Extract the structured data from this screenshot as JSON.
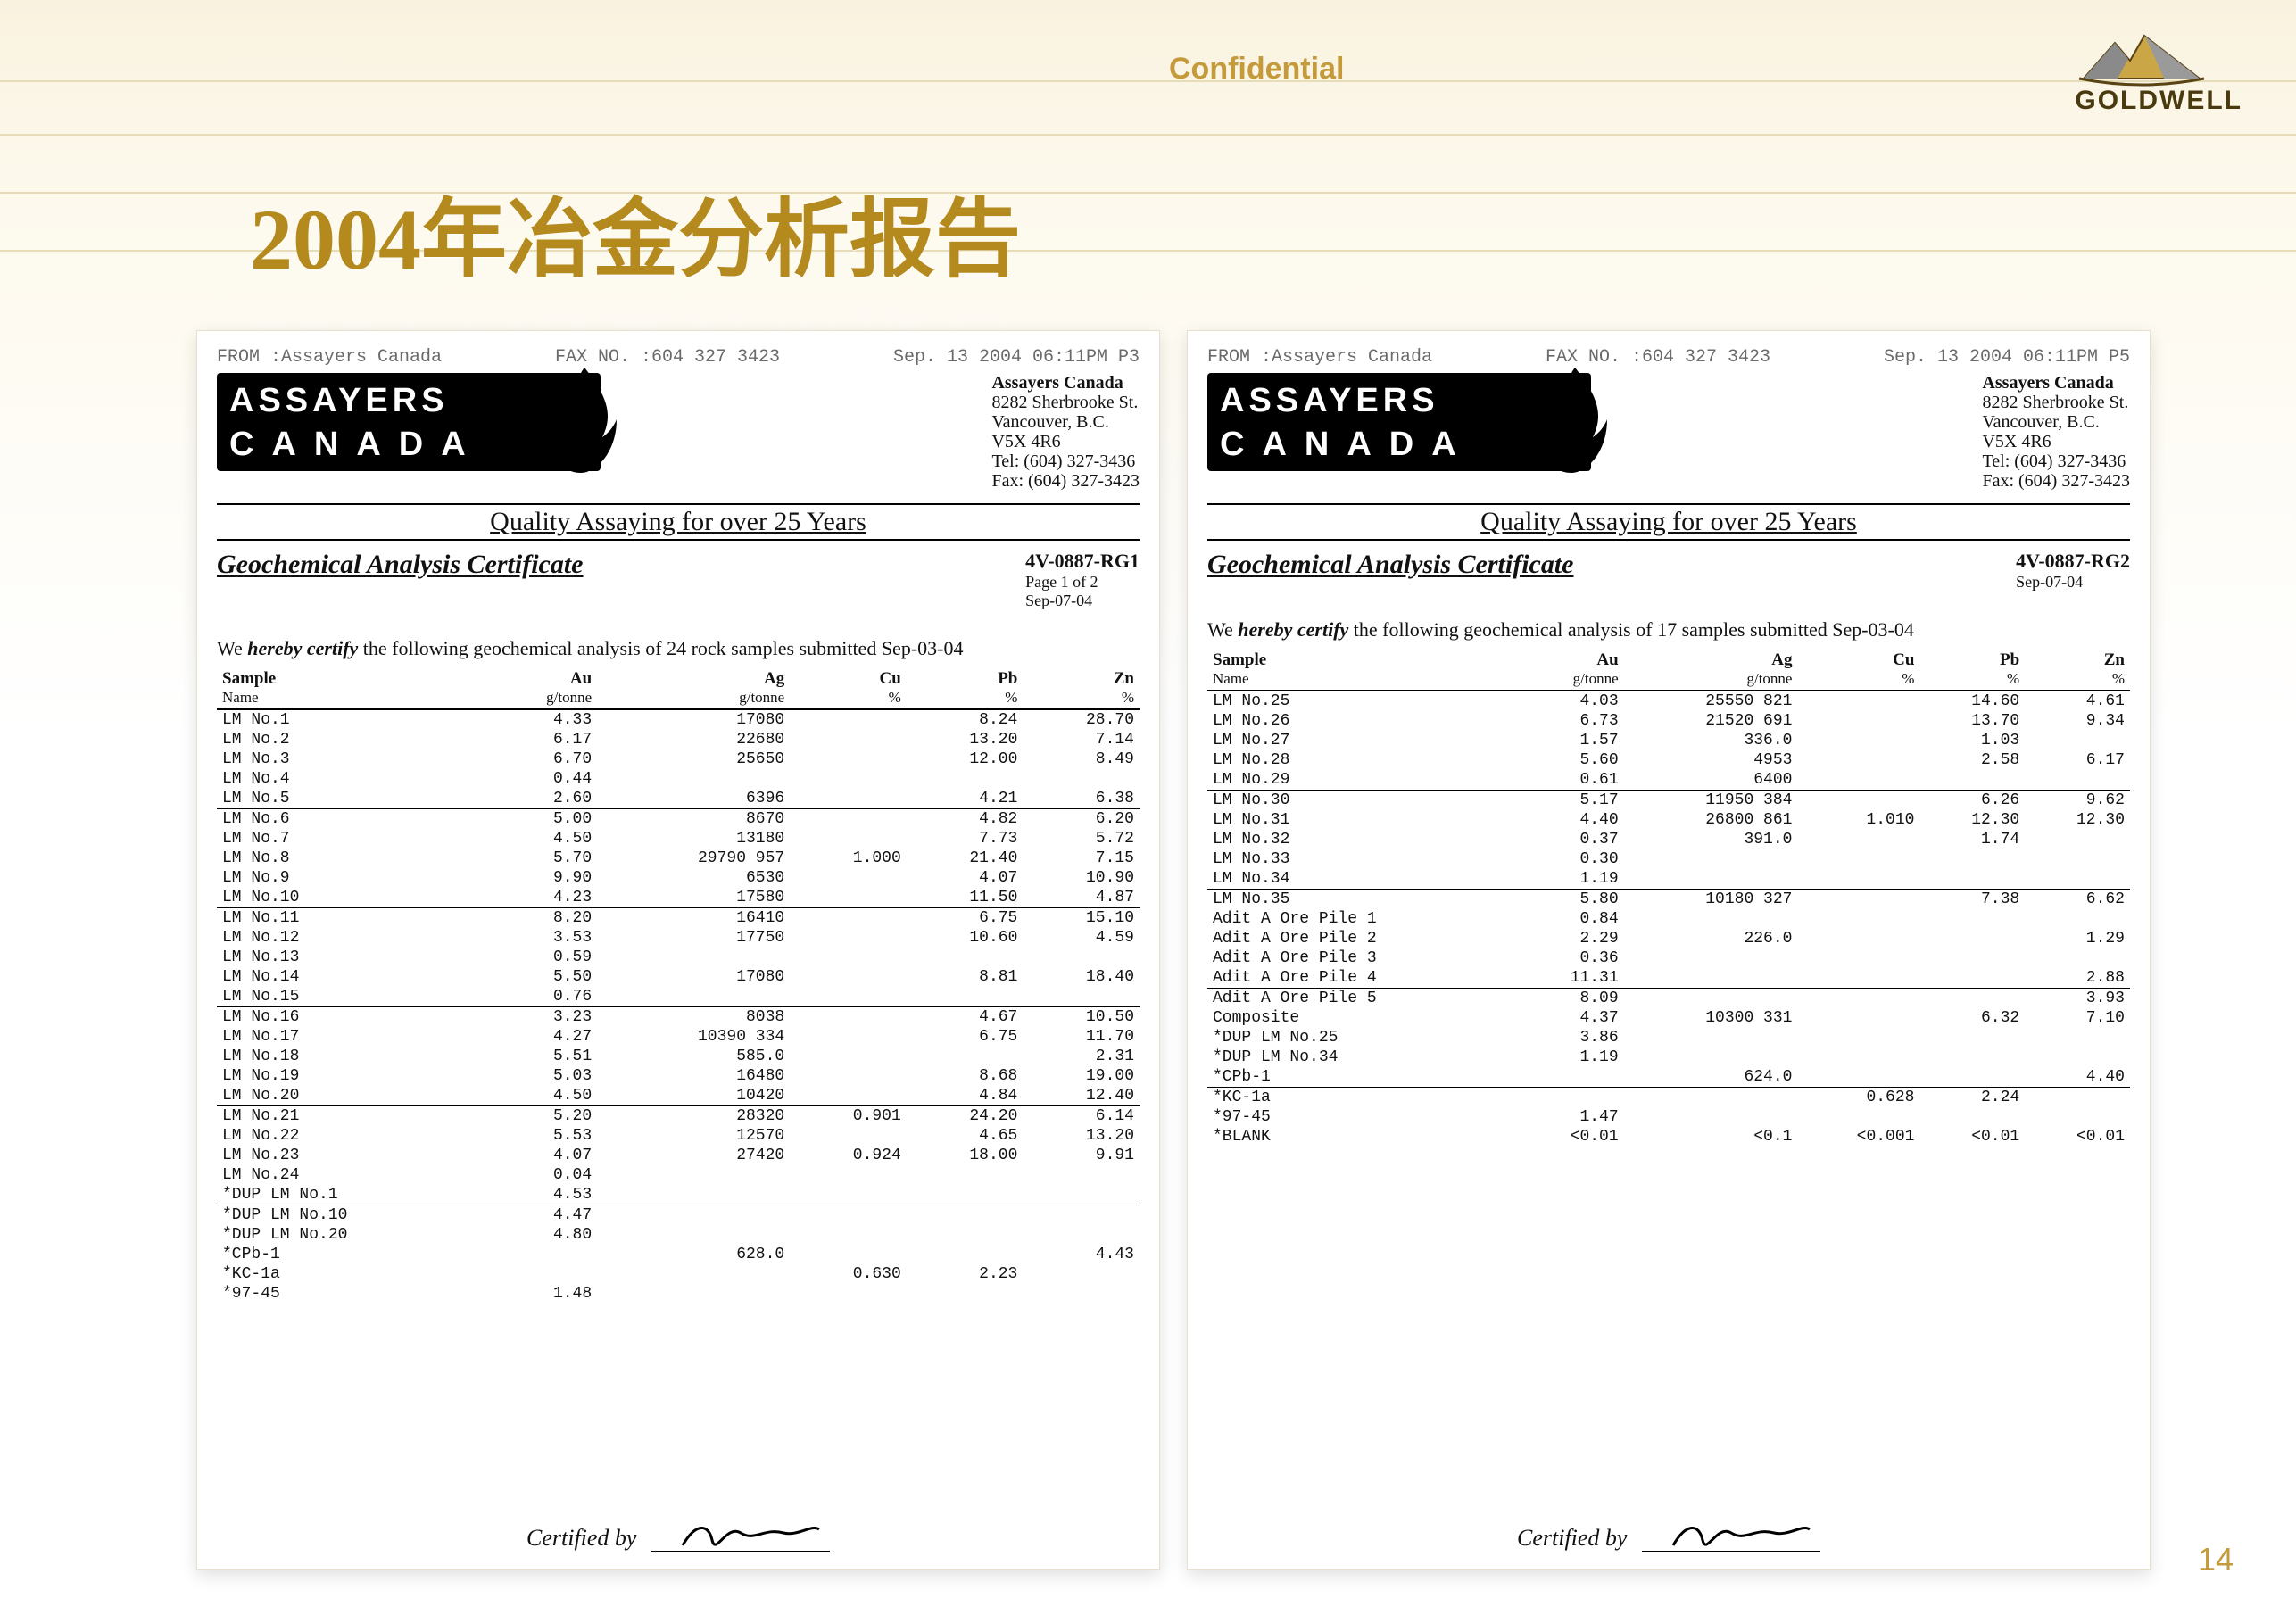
{
  "background_lines_y": [
    90,
    150,
    215,
    280
  ],
  "header": {
    "confidential": "Confidential",
    "logo_label": "GOLDWELL",
    "title": "2004年冶金分析报告",
    "page_number": "14"
  },
  "brand": {
    "line1": "ASSAYERS",
    "line2": "CANADA"
  },
  "address": {
    "name": "Assayers Canada",
    "l1": "8282 Sherbrooke St.",
    "l2": "Vancouver, B.C.",
    "l3": "V5X 4R6",
    "l4": "Tel: (604) 327-3436",
    "l5": "Fax: (604) 327-3423"
  },
  "quality_bar": "Quality Assaying for over 25 Years",
  "cert_title": "Geochemical Analysis Certificate",
  "columns": [
    {
      "h": "Sample",
      "u": "Name"
    },
    {
      "h": "Au",
      "u": "g/tonne"
    },
    {
      "h": "Ag",
      "u": "g/tonne"
    },
    {
      "h": "Cu",
      "u": "%"
    },
    {
      "h": "Pb",
      "u": "%"
    },
    {
      "h": "Zn",
      "u": "%"
    }
  ],
  "certified_by": "Certified by",
  "left": {
    "fax": {
      "from": "FROM :Assayers Canada",
      "mid": "FAX NO. :604 327 3423",
      "right": "Sep. 13 2004 06:11PM  P3"
    },
    "cert_meta": {
      "id": "4V-0887-RG1",
      "page": "Page 1 of 2",
      "date": "Sep-07-04"
    },
    "statement_pre": "We ",
    "statement_em": "hereby certify",
    "statement_post": " the following geochemical analysis of 24 rock samples submitted Sep-03-04",
    "groups": [
      [
        [
          "LM No.1",
          "4.33",
          "17080",
          "",
          "8.24",
          "28.70"
        ],
        [
          "LM No.2",
          "6.17",
          "22680",
          "",
          "13.20",
          "7.14"
        ],
        [
          "LM No.3",
          "6.70",
          "25650",
          "",
          "12.00",
          "8.49"
        ],
        [
          "LM No.4",
          "0.44",
          "",
          "",
          "",
          ""
        ],
        [
          "LM No.5",
          "2.60",
          "6396",
          "",
          "4.21",
          "6.38"
        ]
      ],
      [
        [
          "LM No.6",
          "5.00",
          "8670",
          "",
          "4.82",
          "6.20"
        ],
        [
          "LM No.7",
          "4.50",
          "13180",
          "",
          "7.73",
          "5.72"
        ],
        [
          "LM No.8",
          "5.70",
          "29790 957",
          "1.000",
          "21.40",
          "7.15"
        ],
        [
          "LM No.9",
          "9.90",
          "6530",
          "",
          "4.07",
          "10.90"
        ],
        [
          "LM No.10",
          "4.23",
          "17580",
          "",
          "11.50",
          "4.87"
        ]
      ],
      [
        [
          "LM No.11",
          "8.20",
          "16410",
          "",
          "6.75",
          "15.10"
        ],
        [
          "LM No.12",
          "3.53",
          "17750",
          "",
          "10.60",
          "4.59"
        ],
        [
          "LM No.13",
          "0.59",
          "",
          "",
          "",
          ""
        ],
        [
          "LM No.14",
          "5.50",
          "17080",
          "",
          "8.81",
          "18.40"
        ],
        [
          "LM No.15",
          "0.76",
          "",
          "",
          "",
          ""
        ]
      ],
      [
        [
          "LM No.16",
          "3.23",
          "8038",
          "",
          "4.67",
          "10.50"
        ],
        [
          "LM No.17",
          "4.27",
          "10390 334",
          "",
          "6.75",
          "11.70"
        ],
        [
          "LM No.18",
          "5.51",
          "585.0",
          "",
          "",
          "2.31"
        ],
        [
          "LM No.19",
          "5.03",
          "16480",
          "",
          "8.68",
          "19.00"
        ],
        [
          "LM No.20",
          "4.50",
          "10420",
          "",
          "4.84",
          "12.40"
        ]
      ],
      [
        [
          "LM No.21",
          "5.20",
          "28320",
          "0.901",
          "24.20",
          "6.14"
        ],
        [
          "LM No.22",
          "5.53",
          "12570",
          "",
          "4.65",
          "13.20"
        ],
        [
          "LM No.23",
          "4.07",
          "27420",
          "0.924",
          "18.00",
          "9.91"
        ],
        [
          "LM No.24",
          "0.04",
          "",
          "",
          "",
          ""
        ],
        [
          "*DUP LM No.1",
          "4.53",
          "",
          "",
          "",
          ""
        ]
      ],
      [
        [
          "*DUP LM No.10",
          "4.47",
          "",
          "",
          "",
          ""
        ],
        [
          "*DUP LM No.20",
          "4.80",
          "",
          "",
          "",
          ""
        ],
        [
          "*CPb-1",
          "",
          "628.0",
          "",
          "",
          "4.43"
        ],
        [
          "*KC-1a",
          "",
          "",
          "0.630",
          "2.23",
          ""
        ],
        [
          "*97-45",
          "1.48",
          "",
          "",
          "",
          ""
        ]
      ]
    ]
  },
  "right": {
    "fax": {
      "from": "FROM :Assayers Canada",
      "mid": "FAX NO. :604 327 3423",
      "right": "Sep. 13 2004 06:11PM  P5"
    },
    "cert_meta": {
      "id": "4V-0887-RG2",
      "page": "",
      "date": "Sep-07-04"
    },
    "statement_pre": "We ",
    "statement_em": "hereby certify",
    "statement_post": " the following geochemical analysis of 17  samples submitted Sep-03-04",
    "groups": [
      [
        [
          "LM No.25",
          "4.03",
          "25550 821",
          "",
          "14.60",
          "4.61"
        ],
        [
          "LM No.26",
          "6.73",
          "21520 691",
          "",
          "13.70",
          "9.34"
        ],
        [
          "LM No.27",
          "1.57",
          "336.0",
          "",
          "1.03",
          ""
        ],
        [
          "LM No.28",
          "5.60",
          "4953",
          "",
          "2.58",
          "6.17"
        ],
        [
          "LM No.29",
          "0.61",
          "6400",
          "",
          "",
          ""
        ]
      ],
      [
        [
          "LM No.30",
          "5.17",
          "11950 384",
          "",
          "6.26",
          "9.62"
        ],
        [
          "LM No.31",
          "4.40",
          "26800 861",
          "1.010",
          "12.30",
          "12.30"
        ],
        [
          "LM No.32",
          "0.37",
          "391.0",
          "",
          "1.74",
          ""
        ],
        [
          "LM No.33",
          "0.30",
          "",
          "",
          "",
          ""
        ],
        [
          "LM No.34",
          "1.19",
          "",
          "",
          "",
          ""
        ]
      ],
      [
        [
          "LM No.35",
          "5.80",
          "10180 327",
          "",
          "7.38",
          "6.62"
        ],
        [
          "Adit A Ore Pile 1",
          "0.84",
          "",
          "",
          "",
          ""
        ],
        [
          "Adit A Ore Pile 2",
          "2.29",
          "226.0",
          "",
          "",
          "1.29"
        ],
        [
          "Adit A Ore Pile 3",
          "0.36",
          "",
          "",
          "",
          ""
        ],
        [
          "Adit A Ore Pile 4",
          "11.31",
          "",
          "",
          "",
          "2.88"
        ]
      ],
      [
        [
          "Adit A Ore Pile 5",
          "8.09",
          "",
          "",
          "",
          "3.93"
        ],
        [
          "Composite",
          "4.37",
          "10300 331",
          "",
          "6.32",
          "7.10"
        ],
        [
          "*DUP LM No.25",
          "3.86",
          "",
          "",
          "",
          ""
        ],
        [
          "*DUP LM No.34",
          "1.19",
          "",
          "",
          "",
          ""
        ],
        [
          "*CPb-1",
          "",
          "624.0",
          "",
          "",
          "4.40"
        ]
      ],
      [
        [
          "*KC-1a",
          "",
          "",
          "0.628",
          "2.24",
          ""
        ],
        [
          "*97-45",
          "1.47",
          "",
          "",
          "",
          ""
        ],
        [
          "*BLANK",
          "<0.01",
          "<0.1",
          "<0.001",
          "<0.01",
          "<0.01"
        ]
      ]
    ]
  }
}
